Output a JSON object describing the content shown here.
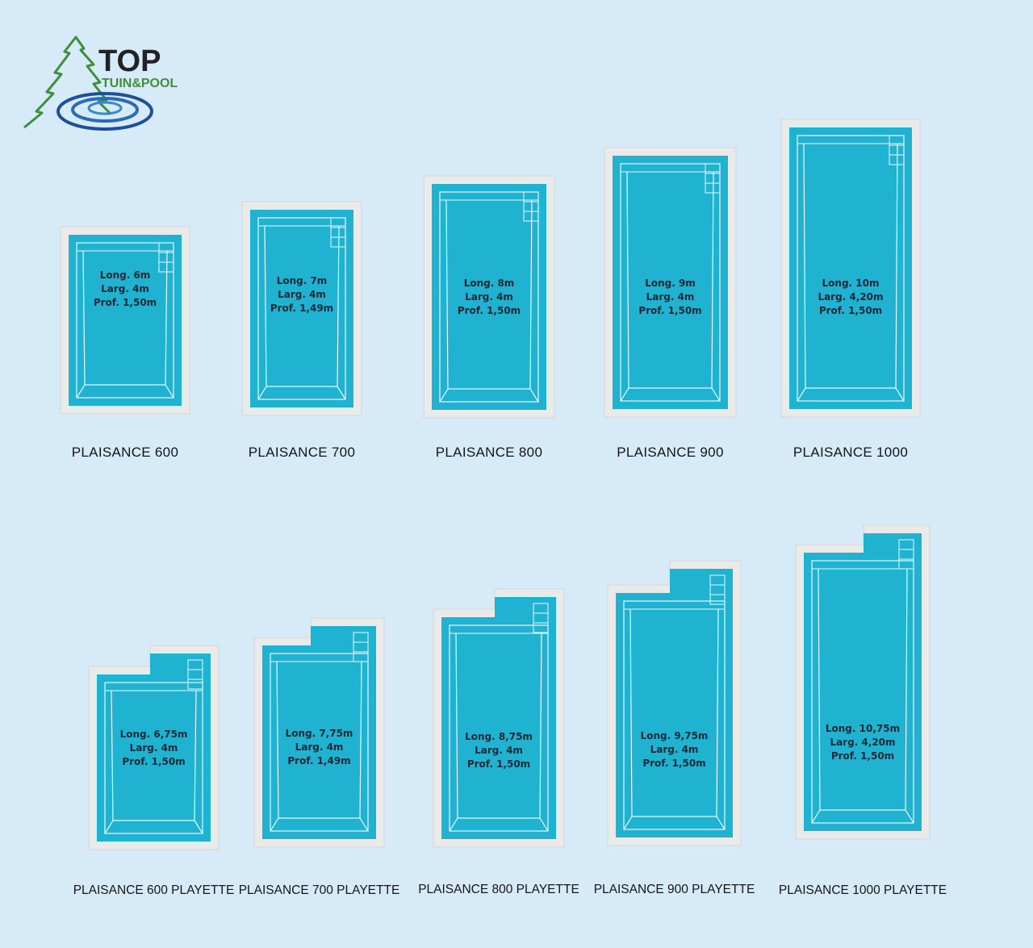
{
  "logo": {
    "brand": "TOP",
    "sub": "TUIN&POOL"
  },
  "pools": [
    {
      "name": "PLAISANCE 600",
      "specs": [
        "Long. 6m",
        "Larg. 4m",
        "Prof. 1,50m"
      ]
    },
    {
      "name": "PLAISANCE 700",
      "specs": [
        "Long. 7m",
        "Larg. 4m",
        "Prof. 1,49m"
      ]
    },
    {
      "name": "PLAISANCE 800",
      "specs": [
        "Long. 8m",
        "Larg. 4m",
        "Prof. 1,50m"
      ]
    },
    {
      "name": "PLAISANCE 900",
      "specs": [
        "Long. 9m",
        "Larg. 4m",
        "Prof. 1,50m"
      ]
    },
    {
      "name": "PLAISANCE 1000",
      "specs": [
        "Long. 10m",
        "Larg. 4,20m",
        "Prof. 1,50m"
      ]
    }
  ],
  "playette": [
    {
      "name": "PLAISANCE 600 PLAYETTE",
      "specs": [
        "Long. 6,75m",
        "Larg. 4m",
        "Prof. 1,50m"
      ]
    },
    {
      "name": "PLAISANCE 700 PLAYETTE",
      "specs": [
        "Long. 7,75m",
        "Larg. 4m",
        "Prof. 1,49m"
      ]
    },
    {
      "name": "PLAISANCE 800 PLAYETTE",
      "specs": [
        "Long. 8,75m",
        "Larg. 4m",
        "Prof. 1,50m"
      ]
    },
    {
      "name": "PLAISANCE 900 PLAYETTE",
      "specs": [
        "Long. 9,75m",
        "Larg. 4m",
        "Prof. 1,50m"
      ]
    },
    {
      "name": "PLAISANCE 1000 PLAYETTE",
      "specs": [
        "Long. 10,75m",
        "Larg. 4,20m",
        "Prof. 1,50m"
      ]
    }
  ]
}
